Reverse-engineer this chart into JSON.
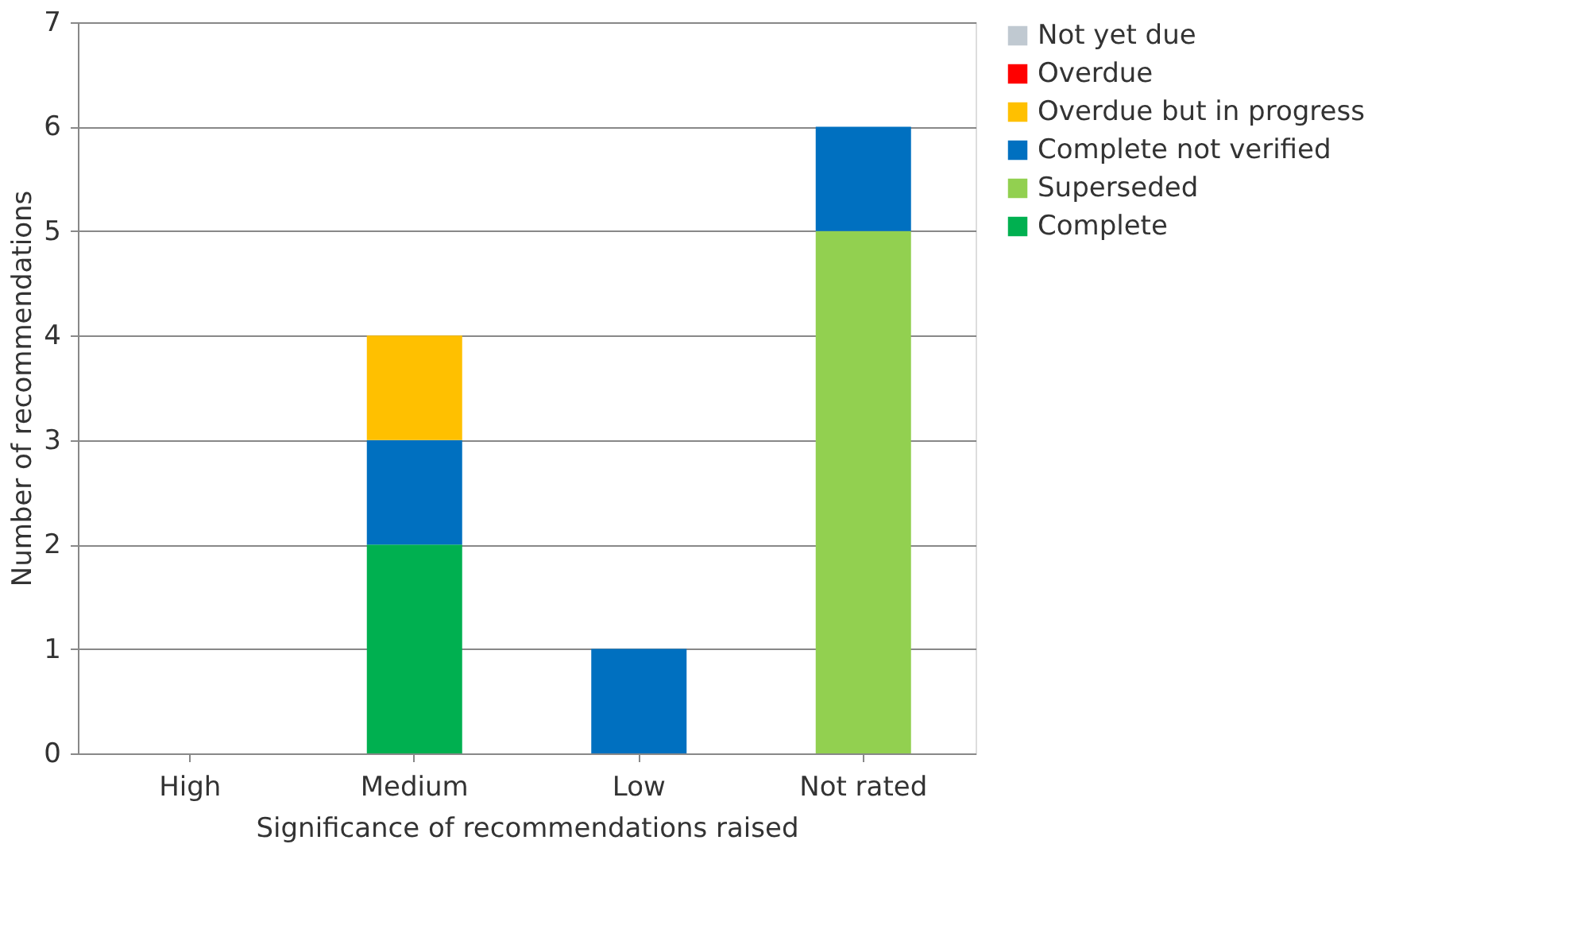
{
  "chart_data": {
    "type": "bar",
    "stacked": true,
    "xlabel": "Significance of recommendations raised",
    "ylabel": "Number of recommendations",
    "categories": [
      "High",
      "Medium",
      "Low",
      "Not rated"
    ],
    "series": [
      {
        "name": "Complete",
        "color": "#00b050",
        "values": [
          0,
          2,
          0,
          0
        ]
      },
      {
        "name": "Superseded",
        "color": "#92d050",
        "values": [
          0,
          0,
          0,
          5
        ]
      },
      {
        "name": "Complete not verified",
        "color": "#0070c0",
        "values": [
          0,
          1,
          1,
          1
        ]
      },
      {
        "name": "Overdue but in progress",
        "color": "#ffc000",
        "values": [
          0,
          1,
          0,
          0
        ]
      },
      {
        "name": "Overdue",
        "color": "#ff0000",
        "values": [
          0,
          0,
          0,
          0
        ]
      },
      {
        "name": "Not yet due",
        "color": "#c0c9d1",
        "values": [
          0,
          0,
          0,
          0
        ]
      }
    ],
    "ylim": [
      0,
      7
    ],
    "yticks": [
      0,
      1,
      2,
      3,
      4,
      5,
      6,
      7
    ],
    "grid": "y",
    "legend": "right"
  }
}
